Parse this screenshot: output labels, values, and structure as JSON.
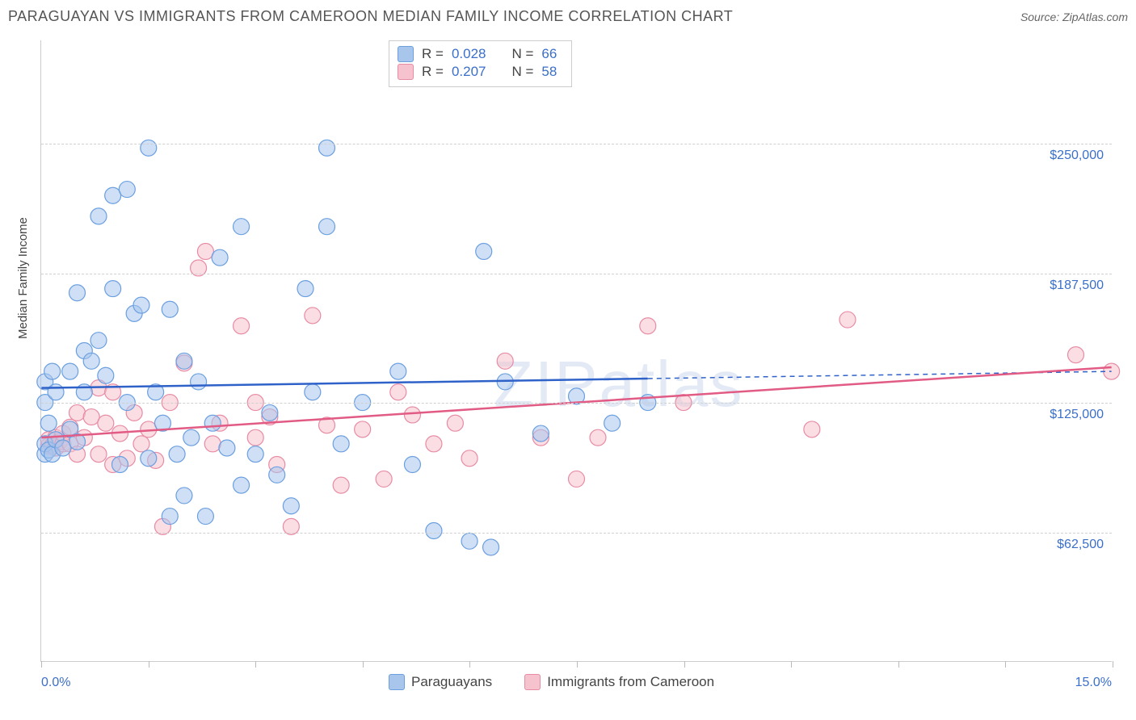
{
  "title": "PARAGUAYAN VS IMMIGRANTS FROM CAMEROON MEDIAN FAMILY INCOME CORRELATION CHART",
  "source": "Source: ZipAtlas.com",
  "watermark": "ZIPatlas",
  "ylabel": "Median Family Income",
  "chart": {
    "type": "scatter",
    "xlim": [
      0,
      15
    ],
    "ylim": [
      0,
      300000
    ],
    "x_unit": "%",
    "y_unit": "$",
    "y_gridlines": [
      62500,
      125000,
      187500,
      250000
    ],
    "y_tick_labels": [
      "$62,500",
      "$125,000",
      "$187,500",
      "$250,000"
    ],
    "x_tick_positions": [
      0,
      1.5,
      3,
      4.5,
      6,
      7.5,
      9,
      10.5,
      12,
      13.5,
      15
    ],
    "x_min_label": "0.0%",
    "x_max_label": "15.0%",
    "background_color": "#ffffff",
    "grid_color": "#d0d0d0",
    "axis_color": "#cccccc",
    "axis_label_color": "#3b6fc9",
    "marker_radius": 10,
    "marker_opacity": 0.55,
    "series": [
      {
        "name": "Paraguayans",
        "color_fill": "#a8c5ec",
        "color_stroke": "#6a9fe0",
        "R": "0.028",
        "N": "66",
        "trend": {
          "y_at_x0": 132000,
          "y_at_x15": 140000,
          "solid_until_x": 8.5
        },
        "points": [
          [
            0.05,
            100000
          ],
          [
            0.05,
            105000
          ],
          [
            0.05,
            125000
          ],
          [
            0.05,
            135000
          ],
          [
            0.1,
            102000
          ],
          [
            0.1,
            115000
          ],
          [
            0.15,
            140000
          ],
          [
            0.15,
            100000
          ],
          [
            0.2,
            107000
          ],
          [
            0.2,
            130000
          ],
          [
            0.3,
            103000
          ],
          [
            0.4,
            112000
          ],
          [
            0.4,
            140000
          ],
          [
            0.5,
            106000
          ],
          [
            0.5,
            178000
          ],
          [
            0.6,
            150000
          ],
          [
            0.6,
            130000
          ],
          [
            0.7,
            145000
          ],
          [
            0.8,
            215000
          ],
          [
            0.8,
            155000
          ],
          [
            0.9,
            138000
          ],
          [
            1.0,
            225000
          ],
          [
            1.0,
            180000
          ],
          [
            1.1,
            95000
          ],
          [
            1.2,
            228000
          ],
          [
            1.2,
            125000
          ],
          [
            1.3,
            168000
          ],
          [
            1.4,
            172000
          ],
          [
            1.5,
            248000
          ],
          [
            1.5,
            98000
          ],
          [
            1.6,
            130000
          ],
          [
            1.7,
            115000
          ],
          [
            1.8,
            70000
          ],
          [
            1.8,
            170000
          ],
          [
            1.9,
            100000
          ],
          [
            2.0,
            145000
          ],
          [
            2.0,
            80000
          ],
          [
            2.1,
            108000
          ],
          [
            2.2,
            135000
          ],
          [
            2.3,
            70000
          ],
          [
            2.4,
            115000
          ],
          [
            2.5,
            195000
          ],
          [
            2.6,
            103000
          ],
          [
            2.8,
            85000
          ],
          [
            2.8,
            210000
          ],
          [
            3.0,
            100000
          ],
          [
            3.2,
            120000
          ],
          [
            3.3,
            90000
          ],
          [
            3.5,
            75000
          ],
          [
            3.7,
            180000
          ],
          [
            3.8,
            130000
          ],
          [
            4.0,
            248000
          ],
          [
            4.0,
            210000
          ],
          [
            4.2,
            105000
          ],
          [
            4.5,
            125000
          ],
          [
            5.0,
            140000
          ],
          [
            5.2,
            95000
          ],
          [
            5.5,
            63000
          ],
          [
            6.0,
            58000
          ],
          [
            6.2,
            198000
          ],
          [
            6.3,
            55000
          ],
          [
            6.5,
            135000
          ],
          [
            7.0,
            110000
          ],
          [
            7.5,
            128000
          ],
          [
            8.0,
            115000
          ],
          [
            8.5,
            125000
          ]
        ]
      },
      {
        "name": "Immigrants from Cameroon",
        "color_fill": "#f5c2ce",
        "color_stroke": "#e88ba4",
        "R": "0.207",
        "N": "58",
        "trend": {
          "y_at_x0": 108000,
          "y_at_x15": 142000,
          "solid_until_x": 15
        },
        "points": [
          [
            0.1,
            104000
          ],
          [
            0.1,
            107000
          ],
          [
            0.15,
            104000
          ],
          [
            0.2,
            103000
          ],
          [
            0.2,
            108000
          ],
          [
            0.25,
            106000
          ],
          [
            0.3,
            105000
          ],
          [
            0.3,
            110000
          ],
          [
            0.4,
            105000
          ],
          [
            0.4,
            113000
          ],
          [
            0.5,
            100000
          ],
          [
            0.5,
            120000
          ],
          [
            0.6,
            108000
          ],
          [
            0.7,
            118000
          ],
          [
            0.8,
            100000
          ],
          [
            0.8,
            132000
          ],
          [
            0.9,
            115000
          ],
          [
            1.0,
            95000
          ],
          [
            1.0,
            130000
          ],
          [
            1.1,
            110000
          ],
          [
            1.2,
            98000
          ],
          [
            1.3,
            120000
          ],
          [
            1.4,
            105000
          ],
          [
            1.5,
            112000
          ],
          [
            1.6,
            97000
          ],
          [
            1.7,
            65000
          ],
          [
            1.8,
            125000
          ],
          [
            2.0,
            144000
          ],
          [
            2.2,
            190000
          ],
          [
            2.3,
            198000
          ],
          [
            2.4,
            105000
          ],
          [
            2.5,
            115000
          ],
          [
            2.8,
            162000
          ],
          [
            3.0,
            108000
          ],
          [
            3.0,
            125000
          ],
          [
            3.2,
            118000
          ],
          [
            3.3,
            95000
          ],
          [
            3.5,
            65000
          ],
          [
            3.8,
            167000
          ],
          [
            4.0,
            114000
          ],
          [
            4.2,
            85000
          ],
          [
            4.5,
            112000
          ],
          [
            4.8,
            88000
          ],
          [
            5.0,
            130000
          ],
          [
            5.2,
            119000
          ],
          [
            5.5,
            105000
          ],
          [
            5.8,
            115000
          ],
          [
            6.0,
            98000
          ],
          [
            6.5,
            145000
          ],
          [
            7.0,
            108000
          ],
          [
            7.5,
            88000
          ],
          [
            7.8,
            108000
          ],
          [
            8.5,
            162000
          ],
          [
            10.8,
            112000
          ],
          [
            11.3,
            165000
          ],
          [
            14.5,
            148000
          ],
          [
            15.0,
            140000
          ],
          [
            9.0,
            125000
          ]
        ]
      }
    ]
  },
  "legend": {
    "series1_label": "Paraguayans",
    "series2_label": "Immigrants from Cameroon",
    "r_prefix": "R =",
    "n_prefix": "N ="
  }
}
